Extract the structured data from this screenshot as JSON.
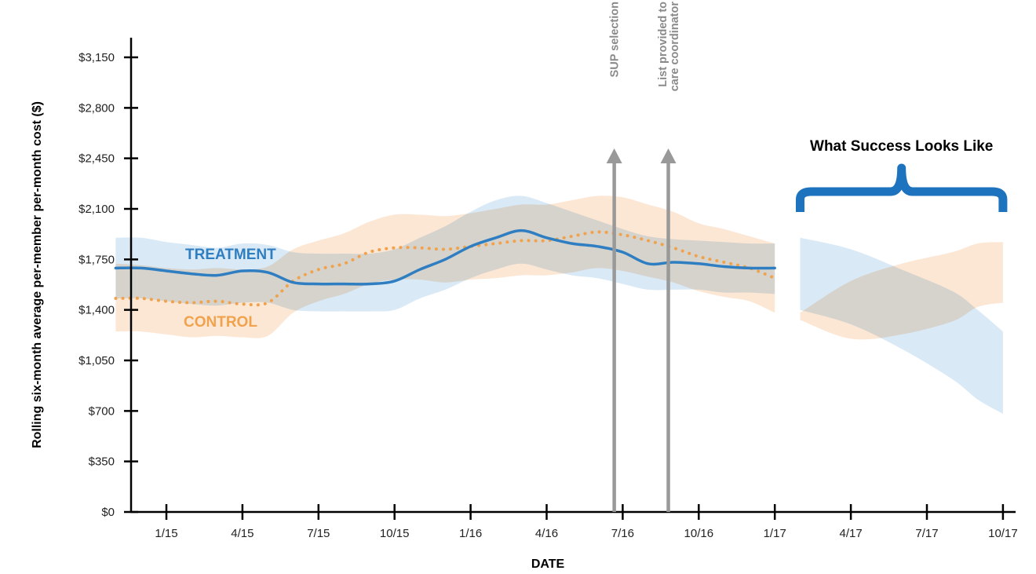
{
  "chart_data": {
    "type": "line",
    "xlabel": "DATE",
    "ylabel": "Rolling six-month average per-member per-month cost ($)",
    "ylim": [
      0,
      3300
    ],
    "y_ticks": [
      {
        "value": 0,
        "label": "$0"
      },
      {
        "value": 350,
        "label": "$350"
      },
      {
        "value": 700,
        "label": "$700"
      },
      {
        "value": 1050,
        "label": "$1,050"
      },
      {
        "value": 1400,
        "label": "$1,400"
      },
      {
        "value": 1750,
        "label": "$1,750"
      },
      {
        "value": 2100,
        "label": "$2,100"
      },
      {
        "value": 2450,
        "label": "$2,450"
      },
      {
        "value": 2800,
        "label": "$2,800"
      },
      {
        "value": 3150,
        "label": "$3,150"
      }
    ],
    "x_range": [
      "2014-11",
      "2017-11"
    ],
    "x_ticks": [
      {
        "date": "2015-01",
        "label": "1/15"
      },
      {
        "date": "2015-04",
        "label": "4/15"
      },
      {
        "date": "2015-07",
        "label": "7/15"
      },
      {
        "date": "2015-10",
        "label": "10/15"
      },
      {
        "date": "2016-01",
        "label": "1/16"
      },
      {
        "date": "2016-04",
        "label": "4/16"
      },
      {
        "date": "2016-07",
        "label": "7/16"
      },
      {
        "date": "2016-10",
        "label": "10/16"
      },
      {
        "date": "2017-01",
        "label": "1/17"
      },
      {
        "date": "2017-04",
        "label": "4/17"
      },
      {
        "date": "2017-07",
        "label": "7/17"
      },
      {
        "date": "2017-10",
        "label": "10/17"
      }
    ],
    "series": [
      {
        "name": "TREATMENT",
        "color": "#2f7ec1",
        "band_color": "#cfe3f4",
        "style": "solid",
        "x": [
          "2014-11",
          "2014-12",
          "2015-01",
          "2015-02",
          "2015-03",
          "2015-04",
          "2015-05",
          "2015-06",
          "2015-07",
          "2015-08",
          "2015-09",
          "2015-10",
          "2015-11",
          "2015-12",
          "2016-01",
          "2016-02",
          "2016-03",
          "2016-04",
          "2016-05",
          "2016-06",
          "2016-07",
          "2016-08",
          "2016-09",
          "2016-10",
          "2016-11",
          "2016-12",
          "2017-01"
        ],
        "values": [
          1690,
          1690,
          1670,
          1650,
          1640,
          1670,
          1660,
          1590,
          1580,
          1580,
          1580,
          1600,
          1680,
          1750,
          1840,
          1900,
          1950,
          1900,
          1860,
          1840,
          1800,
          1720,
          1730,
          1720,
          1700,
          1690,
          1690
        ],
        "band_upper": [
          1900,
          1900,
          1870,
          1850,
          1830,
          1860,
          1850,
          1800,
          1790,
          1790,
          1790,
          1820,
          1900,
          1980,
          2080,
          2160,
          2190,
          2140,
          2080,
          2020,
          1960,
          1910,
          1890,
          1880,
          1870,
          1860,
          1860
        ],
        "band_lower": [
          1480,
          1480,
          1460,
          1440,
          1430,
          1450,
          1450,
          1400,
          1390,
          1390,
          1390,
          1400,
          1480,
          1540,
          1620,
          1680,
          1720,
          1680,
          1640,
          1620,
          1580,
          1540,
          1540,
          1540,
          1520,
          1520,
          1510
        ]
      },
      {
        "name": "CONTROL",
        "color": "#f0a24c",
        "band_color": "#fbe1cb",
        "style": "dotted",
        "x": [
          "2014-11",
          "2014-12",
          "2015-01",
          "2015-02",
          "2015-03",
          "2015-04",
          "2015-05",
          "2015-06",
          "2015-07",
          "2015-08",
          "2015-09",
          "2015-10",
          "2015-11",
          "2015-12",
          "2016-01",
          "2016-02",
          "2016-03",
          "2016-04",
          "2016-05",
          "2016-06",
          "2016-07",
          "2016-08",
          "2016-09",
          "2016-10",
          "2016-11",
          "2016-12",
          "2017-01"
        ],
        "values": [
          1480,
          1480,
          1460,
          1450,
          1460,
          1440,
          1450,
          1600,
          1680,
          1720,
          1800,
          1830,
          1830,
          1820,
          1840,
          1860,
          1880,
          1880,
          1910,
          1940,
          1920,
          1880,
          1830,
          1770,
          1730,
          1690,
          1620
        ],
        "band_upper": [
          1720,
          1710,
          1690,
          1680,
          1690,
          1680,
          1700,
          1820,
          1880,
          1930,
          2010,
          2060,
          2060,
          2050,
          2070,
          2100,
          2130,
          2130,
          2160,
          2190,
          2180,
          2130,
          2080,
          2000,
          1960,
          1910,
          1860
        ],
        "band_lower": [
          1250,
          1250,
          1230,
          1210,
          1220,
          1210,
          1220,
          1380,
          1460,
          1510,
          1580,
          1610,
          1610,
          1590,
          1610,
          1620,
          1640,
          1640,
          1660,
          1690,
          1670,
          1630,
          1590,
          1530,
          1490,
          1460,
          1380
        ]
      }
    ],
    "projections": [
      {
        "series": "TREATMENT",
        "band_color": "#cfe3f4",
        "x": [
          "2017-02",
          "2017-04",
          "2017-06",
          "2017-08",
          "2017-09",
          "2017-10"
        ],
        "band_upper": [
          1900,
          1820,
          1680,
          1530,
          1400,
          1250
        ],
        "band_lower": [
          1400,
          1300,
          1130,
          920,
          780,
          680
        ]
      },
      {
        "series": "CONTROL",
        "band_color": "#fbe1cb",
        "x": [
          "2017-02",
          "2017-04",
          "2017-06",
          "2017-08",
          "2017-09",
          "2017-10"
        ],
        "band_upper": [
          1380,
          1600,
          1720,
          1800,
          1860,
          1870
        ],
        "band_lower": [
          1330,
          1200,
          1230,
          1320,
          1420,
          1450
        ]
      }
    ],
    "annotations": [
      {
        "line1": "SUP selection",
        "line2": "",
        "date": "2016-06-21"
      },
      {
        "line1": "List provided to",
        "line2": "care coordinator",
        "date": "2016-08-25"
      }
    ],
    "success_label": "What Success Looks Like",
    "success_range": [
      "2017-02",
      "2017-10"
    ],
    "bracket_color": "#1e73be",
    "arrow_color": "#999999"
  }
}
